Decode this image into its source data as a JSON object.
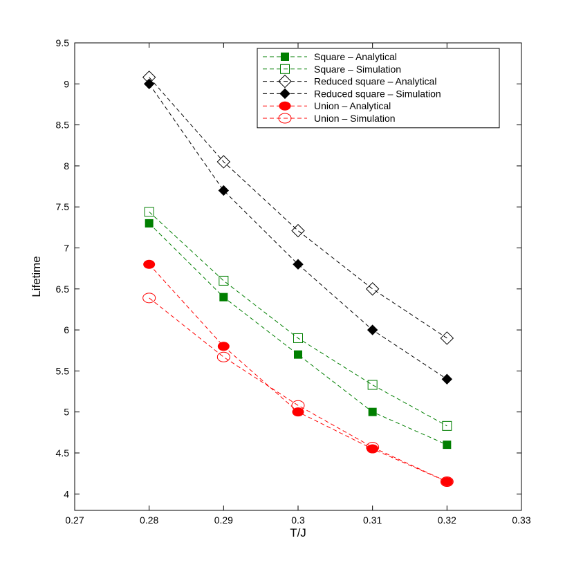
{
  "chart_data": {
    "type": "line",
    "xlabel": "T/J",
    "ylabel": "Lifetime",
    "xlim": [
      0.27,
      0.33
    ],
    "ylim": [
      3.8,
      9.5
    ],
    "xticks": [
      "0.27",
      "0.28",
      "0.29",
      "0.3",
      "0.31",
      "0.32",
      "0.33"
    ],
    "yticks": [
      "4",
      "4.5",
      "5",
      "5.5",
      "6",
      "6.5",
      "7",
      "7.5",
      "8",
      "8.5",
      "9",
      "9.5"
    ],
    "grid": false,
    "legend_position": "top-right",
    "x": [
      0.28,
      0.29,
      0.3,
      0.31,
      0.32
    ],
    "series": [
      {
        "name": "Square – Analytical",
        "color": "#007f00",
        "marker": "square-filled",
        "values": [
          7.3,
          6.4,
          5.7,
          5.0,
          4.6
        ]
      },
      {
        "name": "Square – Simulation",
        "color": "#007f00",
        "marker": "square-open",
        "values": [
          7.44,
          6.6,
          5.9,
          5.33,
          4.83
        ]
      },
      {
        "name": "Reduced square – Analytical",
        "color": "#000000",
        "marker": "diamond-open",
        "values": [
          9.08,
          8.05,
          7.21,
          6.5,
          5.9
        ]
      },
      {
        "name": "Reduced square – Simulation",
        "color": "#000000",
        "marker": "diamond-filled",
        "values": [
          9.0,
          7.7,
          6.8,
          6.0,
          5.4
        ]
      },
      {
        "name": "Union – Analytical",
        "color": "#ff0000",
        "marker": "circle-filled",
        "values": [
          6.8,
          5.8,
          5.0,
          4.55,
          4.15
        ]
      },
      {
        "name": "Union – Simulation",
        "color": "#ff0000",
        "marker": "circle-open",
        "values": [
          6.39,
          5.67,
          5.08,
          4.57,
          4.15
        ]
      }
    ]
  }
}
